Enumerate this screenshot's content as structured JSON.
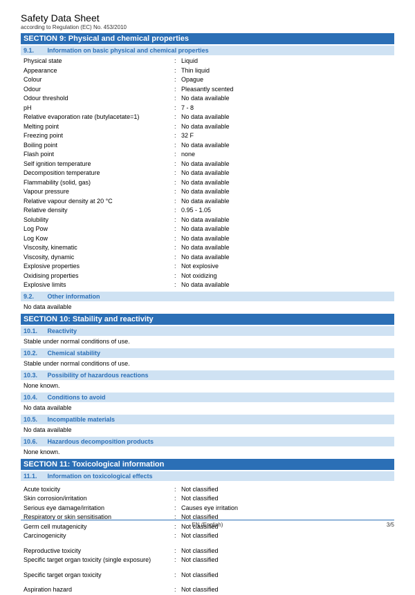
{
  "header": {
    "title": "Safety Data Sheet",
    "subtitle": "according to Regulation (EC) No. 453/2010"
  },
  "section9": {
    "title": "SECTION 9: Physical and chemical properties",
    "sub1": {
      "num": "9.1.",
      "title": "Information on basic physical and chemical properties"
    },
    "props": [
      {
        "label": "Physical state",
        "value": "Liquid"
      },
      {
        "label": "Appearance",
        "value": "Thin liquid"
      },
      {
        "label": "Colour",
        "value": "Opague"
      },
      {
        "label": "Odour",
        "value": "Pleasantly scented"
      },
      {
        "label": "Odour threshold",
        "value": "No data available"
      },
      {
        "label": "pH",
        "value": "7 - 8"
      },
      {
        "label": "Relative evaporation rate (butylacetate=1)",
        "value": "No data available"
      },
      {
        "label": "Melting point",
        "value": "No data available"
      },
      {
        "label": "Freezing point",
        "value": "32 F"
      },
      {
        "label": "Boiling point",
        "value": "No data available"
      },
      {
        "label": "Flash point",
        "value": "none"
      },
      {
        "label": "Self ignition temperature",
        "value": "No data available"
      },
      {
        "label": "Decomposition temperature",
        "value": "No data available"
      },
      {
        "label": "Flammability (solid, gas)",
        "value": "No data available"
      },
      {
        "label": "Vapour pressure",
        "value": "No data available"
      },
      {
        "label": "Relative vapour density at 20 °C",
        "value": "No data available"
      },
      {
        "label": "Relative density",
        "value": "0.95 - 1.05"
      },
      {
        "label": "Solubility",
        "value": "No data available"
      },
      {
        "label": "Log Pow",
        "value": "No data available"
      },
      {
        "label": "Log Kow",
        "value": "No data available"
      },
      {
        "label": "Viscosity, kinematic",
        "value": "No data available"
      },
      {
        "label": "Viscosity, dynamic",
        "value": "No data available"
      },
      {
        "label": "Explosive properties",
        "value": "Not explosive"
      },
      {
        "label": "Oxidising properties",
        "value": "Not oxidizing"
      },
      {
        "label": "Explosive limits",
        "value": "No data available"
      }
    ],
    "sub2": {
      "num": "9.2.",
      "title": "Other information"
    },
    "sub2_body": "No data available"
  },
  "section10": {
    "title": "SECTION 10: Stability and reactivity",
    "s1": {
      "num": "10.1.",
      "title": "Reactivity",
      "body": "Stable under normal conditions of use."
    },
    "s2": {
      "num": "10.2.",
      "title": "Chemical stability",
      "body": "Stable under normal conditions of use."
    },
    "s3": {
      "num": "10.3.",
      "title": "Possibility of hazardous reactions",
      "body": "None known."
    },
    "s4": {
      "num": "10.4.",
      "title": "Conditions to avoid",
      "body": "No data available"
    },
    "s5": {
      "num": "10.5.",
      "title": "Incompatible materials",
      "body": "No data available"
    },
    "s6": {
      "num": "10.6.",
      "title": "Hazardous decomposition products",
      "body": "None known."
    }
  },
  "section11": {
    "title": "SECTION 11: Toxicological information",
    "sub1": {
      "num": "11.1.",
      "title": "Information on toxicological effects"
    },
    "group1": [
      {
        "label": "Acute toxicity",
        "value": "Not classified"
      },
      {
        "label": "Skin corrosion/irritation",
        "value": "Not classified"
      },
      {
        "label": "Serious eye damage/irritation",
        "value": "Causes eye irritation"
      },
      {
        "label": "Respiratory or skin sensitisation",
        "value": "Not classified"
      },
      {
        "label": "Germ cell mutagenicity",
        "value": "Not classified"
      },
      {
        "label": "Carcinogenicity",
        "value": "Not classified"
      }
    ],
    "group2": [
      {
        "label": "Reproductive toxicity",
        "value": "Not classified"
      },
      {
        "label": "Specific target organ toxicity (single exposure)",
        "value": "Not classified"
      }
    ],
    "group3": [
      {
        "label": "Specific target organ toxicity",
        "value": "Not classified"
      }
    ],
    "group4": [
      {
        "label": "Aspiration hazard",
        "value": "Not classified"
      }
    ]
  },
  "footer": {
    "left": "",
    "center": "EN (English)",
    "right": "3/5"
  },
  "colors": {
    "section_bg": "#2b6fb6",
    "subsection_bg": "#cfe2f3",
    "subsection_fg": "#2b6fb6"
  }
}
